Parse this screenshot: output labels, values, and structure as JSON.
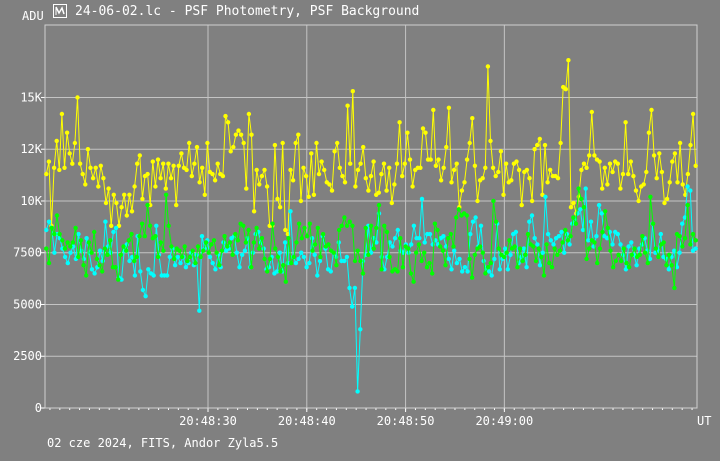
{
  "window": {
    "title": "24-06-02.lc - PSF Photometry, PSF Background",
    "footer": "02 cze 2024, FITS, Andor Zyla5.5",
    "icon": "lightcurve-app-icon"
  },
  "chart_data": {
    "type": "line",
    "ylabel": "ADU",
    "xlabel": "UT",
    "ylim": [
      0,
      18500
    ],
    "yticks": [
      0,
      2500,
      5000,
      7500,
      10000,
      12500,
      15000
    ],
    "ytick_labels": [
      "0",
      "2500",
      "5000",
      "7500",
      "10K",
      "12K",
      "15K"
    ],
    "xlim": [
      0,
      66
    ],
    "xticks": [
      16.5,
      26.5,
      36.5,
      46.5
    ],
    "xtick_labels": [
      "20:48:30",
      "20:48:40",
      "20:48:50",
      "20:49:00"
    ],
    "grid": true,
    "series": [
      {
        "color": "#ffff00",
        "values": [
          11300,
          11900,
          8800,
          11600,
          12900,
          11500,
          14200,
          11600,
          13300,
          12300,
          11800,
          12800,
          15000,
          11800,
          11300,
          10800,
          12500,
          11600,
          11100,
          11600,
          10700,
          11700,
          11100,
          9900,
          10600,
          8800,
          10300,
          9900,
          8800,
          9700,
          10300,
          9300,
          10300,
          9500,
          10700,
          11800,
          12200,
          10100,
          11200,
          11300,
          9800,
          11900,
          10700,
          12000,
          11100,
          11800,
          10600,
          11800,
          11100,
          11700,
          9800,
          11700,
          12300,
          11600,
          11500,
          12800,
          11200,
          11800,
          12600,
          10900,
          11600,
          10300,
          12800,
          11400,
          11300,
          11000,
          11800,
          11300,
          11200,
          14100,
          13800,
          12400,
          12600,
          13200,
          13400,
          13200,
          12800,
          10600,
          14200,
          13200,
          9500,
          11500,
          10800,
          11200,
          11500,
          10700,
          8800,
          8800,
          12700,
          10100,
          9700,
          12800,
          8600,
          8400,
          11500,
          11000,
          12800,
          13200,
          10000,
          11600,
          11200,
          10200,
          12300,
          10300,
          12800,
          11300,
          11900,
          11500,
          10900,
          10800,
          10500,
          12400,
          12800,
          11600,
          11200,
          10900,
          14600,
          11800,
          15300,
          10700,
          11500,
          11800,
          12600,
          11100,
          10500,
          11200,
          11900,
          10300,
          10400,
          11300,
          11800,
          10500,
          11600,
          9900,
          10800,
          11800,
          13800,
          11200,
          11800,
          13300,
          12000,
          10700,
          11500,
          11600,
          11600,
          13500,
          13300,
          12000,
          12000,
          14400,
          11700,
          12000,
          11000,
          11600,
          12600,
          14500,
          10900,
          11500,
          11800,
          9700,
          10500,
          10900,
          12000,
          12800,
          14000,
          11700,
          10000,
          11000,
          11100,
          11600,
          16500,
          12900,
          11600,
          11200,
          11400,
          12400,
          10300,
          11800,
          10900,
          11000,
          11800,
          11900,
          11500,
          9800,
          11400,
          11500,
          11100,
          10000,
          12500,
          12700,
          13000,
          10300,
          12700,
          10900,
          11500,
          11200,
          11200,
          11100,
          12800,
          15500,
          15400,
          16800,
          9700,
          9900,
          9400,
          10200,
          11500,
          11800,
          11600,
          12200,
          14300,
          12200,
          12000,
          11900,
          10600,
          11600,
          10800,
          11800,
          11400,
          11900,
          11800,
          10600,
          11300,
          13800,
          11300,
          11900,
          11200,
          10500,
          10000,
          10700,
          10800,
          11400,
          13300,
          14400,
          12200,
          11100,
          12300,
          11400,
          9900,
          10100,
          10900,
          11900,
          12300,
          10900,
          12800,
          10800,
          10300,
          11300,
          12700,
          14200,
          11700
        ]
      },
      {
        "color": "#00ffff",
        "values": [
          8600,
          9000,
          8700,
          7500,
          8400,
          8200,
          7700,
          7300,
          7000,
          7500,
          7800,
          7200,
          8400,
          7600,
          7200,
          8200,
          7500,
          6700,
          6500,
          6800,
          7600,
          7100,
          9000,
          7800,
          7500,
          8500,
          8700,
          6300,
          6200,
          7600,
          7900,
          7100,
          7300,
          6400,
          8300,
          6600,
          5700,
          5400,
          6700,
          6500,
          6400,
          8800,
          7400,
          6400,
          6400,
          6400,
          7300,
          7700,
          6900,
          7300,
          7000,
          7300,
          6800,
          7000,
          7500,
          6900,
          7400,
          4700,
          8300,
          7700,
          8100,
          7300,
          7000,
          6700,
          7400,
          6800,
          8000,
          7600,
          7700,
          8200,
          8300,
          7500,
          6800,
          7400,
          7600,
          8200,
          6800,
          7500,
          8400,
          8500,
          8000,
          7700,
          6700,
          6800,
          7300,
          6500,
          6600,
          7500,
          6600,
          8000,
          7000,
          9500,
          7300,
          7000,
          7200,
          7500,
          7300,
          6800,
          7000,
          8200,
          7400,
          6400,
          7100,
          8300,
          7700,
          6700,
          6600,
          7500,
          7300,
          8000,
          7100,
          7100,
          7300,
          5800,
          4900,
          5800,
          800,
          3800,
          7100,
          7400,
          8800,
          7500,
          8200,
          8000,
          9400,
          7300,
          6700,
          7300,
          8000,
          7800,
          8200,
          8600,
          7600,
          7500,
          7900,
          7500,
          7900,
          8800,
          8200,
          8200,
          10100,
          8000,
          8400,
          8400,
          7900,
          8100,
          7900,
          8200,
          8300,
          7800,
          7200,
          6700,
          7600,
          7000,
          7200,
          6600,
          6800,
          6600,
          8400,
          9000,
          9200,
          7800,
          8800,
          7100,
          6700,
          6600,
          6400,
          7200,
          8900,
          6700,
          7200,
          7700,
          6700,
          7400,
          8400,
          8500,
          7000,
          7300,
          7700,
          6800,
          9000,
          9300,
          8200,
          7900,
          6900,
          7500,
          10200,
          8400,
          8100,
          7900,
          8200,
          8300,
          8500,
          7500,
          8400,
          7900,
          8900,
          9100,
          9400,
          9600,
          8600,
          10600,
          8100,
          9000,
          7800,
          8300,
          9800,
          9400,
          8300,
          8200,
          8500,
          7900,
          8500,
          8400,
          7900,
          7400,
          6700,
          7800,
          8000,
          7400,
          6900,
          7700,
          7900,
          8200,
          7600,
          7200,
          8900,
          7500,
          7600,
          8400,
          7300,
          7200,
          6700,
          7300,
          7600,
          6800,
          7500,
          8900,
          9200,
          10700,
          10500,
          7600,
          7700
        ]
      },
      {
        "color": "#00ff00",
        "values": [
          7700,
          7000,
          8700,
          8400,
          9300,
          8400,
          8100,
          7700,
          8000,
          7800,
          8000,
          8700,
          7300,
          8100,
          6900,
          6400,
          8000,
          7500,
          8500,
          7200,
          6900,
          6600,
          7700,
          7400,
          8100,
          6800,
          6800,
          6200,
          7400,
          7800,
          7600,
          8100,
          8400,
          7100,
          7300,
          8300,
          8900,
          8300,
          9800,
          8800,
          8200,
          8300,
          7300,
          8000,
          7600,
          10300,
          8800,
          7800,
          7200,
          7700,
          7600,
          7300,
          7800,
          7100,
          7300,
          7600,
          7000,
          7800,
          7300,
          7600,
          8000,
          7500,
          7900,
          8100,
          7500,
          6900,
          7600,
          8300,
          7800,
          8000,
          7400,
          8400,
          8100,
          8900,
          8800,
          8000,
          8600,
          6800,
          8000,
          8700,
          7700,
          8200,
          7200,
          6600,
          7200,
          8900,
          7700,
          7300,
          6600,
          6900,
          6100,
          8200,
          7000,
          7300,
          8000,
          8900,
          8200,
          8700,
          8300,
          8900,
          7600,
          7900,
          8700,
          7300,
          8400,
          7800,
          7900,
          7600,
          7500,
          6900,
          8600,
          8800,
          9200,
          8800,
          9000,
          8800,
          7100,
          7600,
          7100,
          6500,
          8700,
          7400,
          8800,
          7700,
          8700,
          9800,
          6700,
          8800,
          8500,
          7300,
          6600,
          6700,
          6600,
          8200,
          6800,
          7800,
          7700,
          6500,
          6100,
          7500,
          7900,
          7100,
          7500,
          6800,
          7000,
          6500,
          8900,
          8600,
          7800,
          7600,
          6900,
          8200,
          8400,
          7800,
          9200,
          9600,
          9300,
          9400,
          9300,
          7200,
          6300,
          7400,
          7700,
          7800,
          7500,
          6500,
          6800,
          7000,
          10000,
          9000,
          7700,
          7400,
          7300,
          7500,
          8100,
          7700,
          7800,
          6800,
          7700,
          7100,
          7400,
          8400,
          7900,
          7800,
          7100,
          7700,
          7300,
          6400,
          7900,
          7000,
          6800,
          7700,
          7400,
          7600,
          8000,
          8600,
          8100,
          8300,
          9200,
          8900,
          10600,
          10100,
          9700,
          7200,
          7700,
          8100,
          8000,
          7000,
          7700,
          8500,
          9500,
          8700,
          7600,
          6800,
          7100,
          7400,
          7100,
          7700,
          7000,
          6800,
          7400,
          7700,
          7300,
          7400,
          8300,
          7500,
          7000,
          10200,
          8900,
          7700,
          7300,
          7900,
          8000,
          6900,
          7400,
          6900,
          5800,
          8400,
          8300,
          7800,
          8200,
          9800,
          7900,
          8400,
          8100
        ]
      }
    ]
  }
}
